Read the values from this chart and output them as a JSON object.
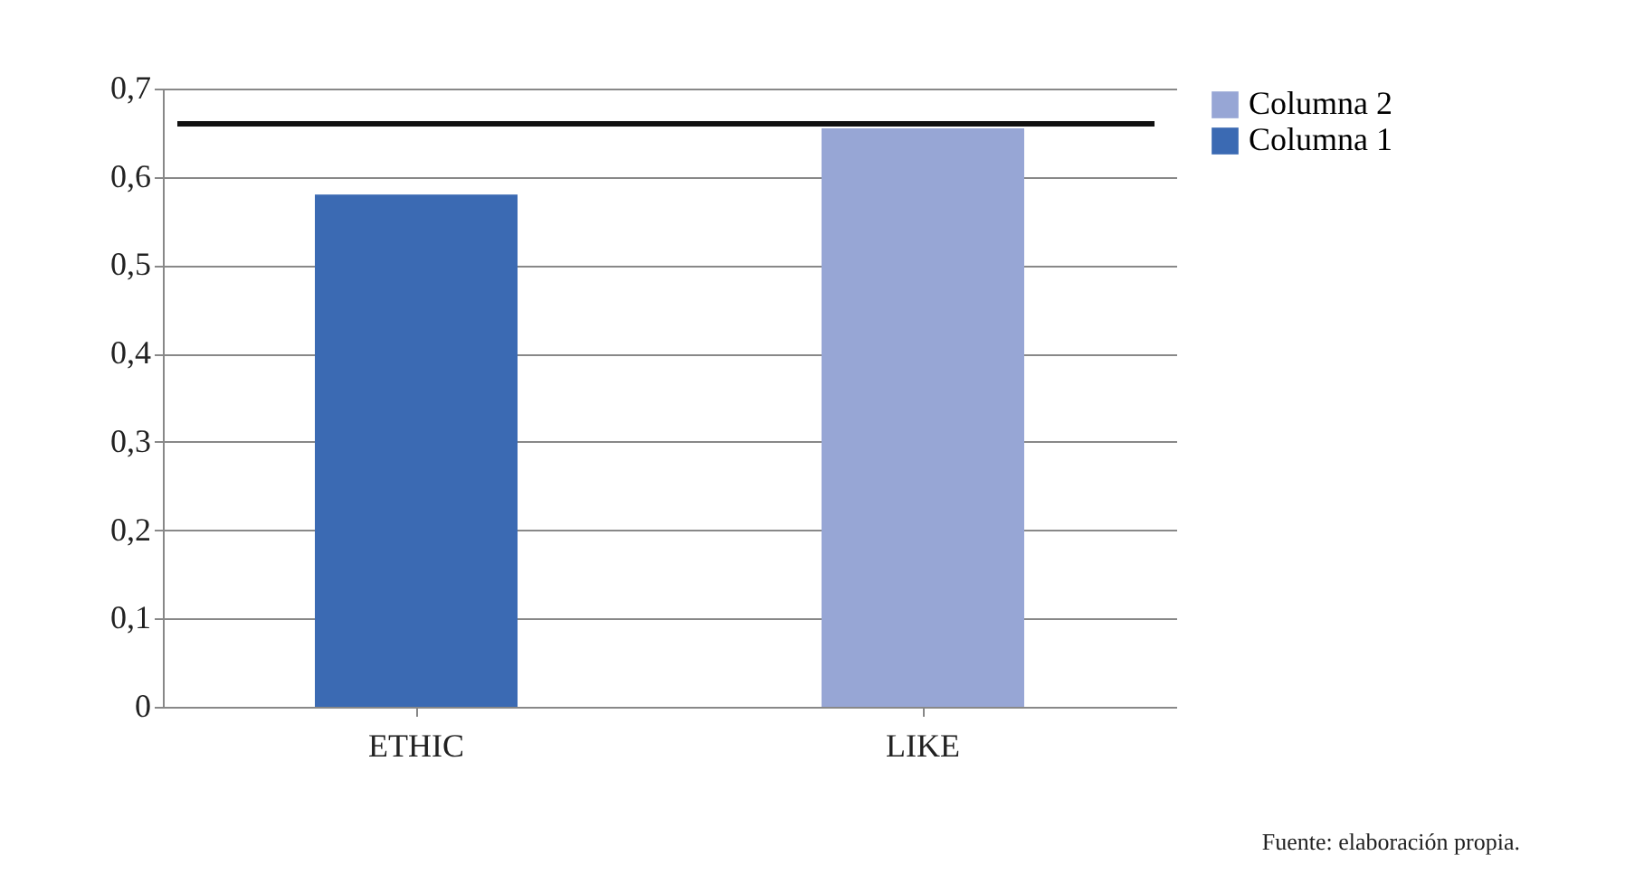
{
  "chart_data": {
    "type": "bar",
    "categories": [
      "ETHIC",
      "LIKE"
    ],
    "series": [
      {
        "name": "Columna 1",
        "color": "#3b6ab3",
        "values": [
          0.58,
          null
        ]
      },
      {
        "name": "Columna 2",
        "color": "#97a6d5",
        "values": [
          null,
          0.655
        ]
      }
    ],
    "ylim": [
      0,
      0.7
    ],
    "yticks": [
      {
        "value": 0,
        "label": "0"
      },
      {
        "value": 0.1,
        "label": "0,1"
      },
      {
        "value": 0.2,
        "label": "0,2"
      },
      {
        "value": 0.3,
        "label": "0,3"
      },
      {
        "value": 0.4,
        "label": "0,4"
      },
      {
        "value": 0.5,
        "label": "0,5"
      },
      {
        "value": 0.6,
        "label": "0,6"
      },
      {
        "value": 0.7,
        "label": "0,7"
      }
    ],
    "ref_lines": [
      {
        "axis": "y",
        "value": 0.66,
        "color": "#111111"
      }
    ],
    "grid": "y",
    "legend": "right",
    "annotations": [
      "Fuente: elaboración propia."
    ]
  }
}
